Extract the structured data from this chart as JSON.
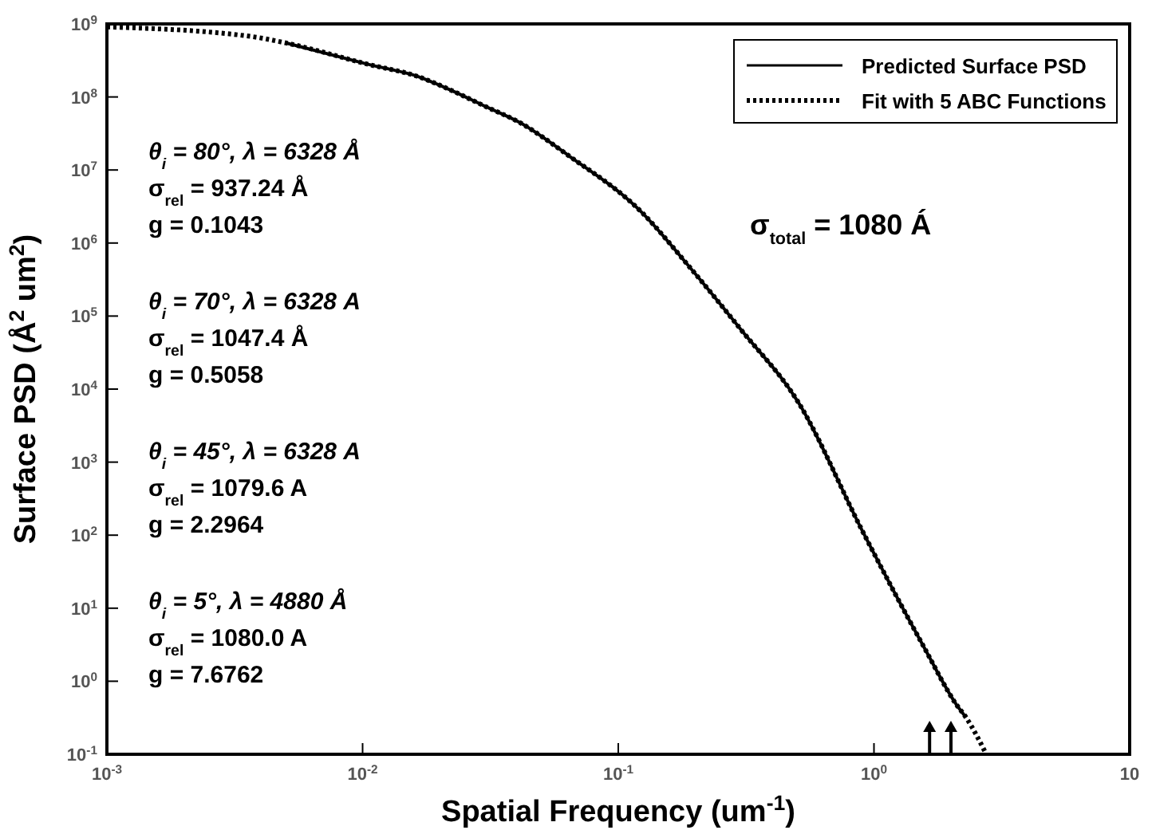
{
  "chart_data": {
    "type": "line",
    "xlabel": "Spatial Frequency (um$^{-1}$)",
    "ylabel": "Surface PSD (Å$^{2}$ um$^{2}$)",
    "log": "xy",
    "xlim": [
      0.001,
      10
    ],
    "ylim": [
      0.1,
      1000000000
    ],
    "xticks": [
      {
        "value": 0.001,
        "label": "10$^{-3}$"
      },
      {
        "value": 0.01,
        "label": "10$^{-2}$"
      },
      {
        "value": 0.1,
        "label": "10$^{-1}$"
      },
      {
        "value": 1,
        "label": "10$^{0}$"
      },
      {
        "value": 10,
        "label": "10"
      }
    ],
    "yticks": [
      {
        "value": 0.1,
        "label": "10$^{-1}$"
      },
      {
        "value": 1,
        "label": "10$^{0}$"
      },
      {
        "value": 10,
        "label": "10$^{1}$"
      },
      {
        "value": 100,
        "label": "10$^{2}$"
      },
      {
        "value": 1000,
        "label": "10$^{3}$"
      },
      {
        "value": 10000,
        "label": "10$^{4}$"
      },
      {
        "value": 100000,
        "label": "10$^{5}$"
      },
      {
        "value": 1000000,
        "label": "10$^{6}$"
      },
      {
        "value": 10000000,
        "label": "10$^{7}$"
      },
      {
        "value": 100000000,
        "label": "10$^{8}$"
      },
      {
        "value": 1000000000,
        "label": "10$^{9}$"
      }
    ],
    "grid": false,
    "legend": "top right",
    "series": [
      {
        "name": "Predicted Surface PSD",
        "color": "#000000",
        "line_style": "solid",
        "x": [
          0.005,
          0.0105,
          0.0165,
          0.0226,
          0.03,
          0.041,
          0.0635,
          0.124,
          0.189,
          0.302,
          0.51,
          0.9,
          1.58,
          2.1,
          2.29
        ],
        "values": [
          550000000,
          280000000,
          190000000,
          120000000,
          75000000,
          45000000,
          16000000,
          2600000,
          480000,
          65000,
          6300,
          115,
          2.8,
          0.48,
          0.32
        ]
      },
      {
        "name": "Fit with 5 ABC Functions",
        "color": "#000000",
        "line_style": "dotted",
        "x": [
          0.001,
          0.0037,
          0.005,
          0.0105,
          0.0165,
          0.0226,
          0.03,
          0.041,
          0.0635,
          0.124,
          0.189,
          0.302,
          0.51,
          0.9,
          1.58,
          2.1,
          2.29,
          2.75
        ],
        "values": [
          910000000,
          670000000,
          550000000,
          280000000,
          190000000,
          120000000,
          75000000,
          45000000,
          16000000,
          2600000,
          480000,
          65000,
          6300,
          115,
          2.8,
          0.48,
          0.32,
          0.1
        ]
      }
    ],
    "annotations": [
      "θ$_{i}$ = 80°,  λ = 6328 Å",
      "σ$_{rel}$ =  937.24 Å",
      "g = 0.1043",
      "θ$_{i}$ = 70°,  λ = 6328 A",
      "σ$_{rel}$ =  1047.4  Å",
      "g = 0.5058",
      "θ$_{i}$ = 45°,  λ = 6328 A",
      "σ$_{rel}$ =  1079.6  A",
      "g = 2.2964",
      "θ$_{i}$ = 5°,  λ = 4880 Å",
      "σ$_{rel}$ =  1080.0  A",
      "g = 7.6762",
      "σ$_{total}$ = 1080 Á"
    ]
  }
}
